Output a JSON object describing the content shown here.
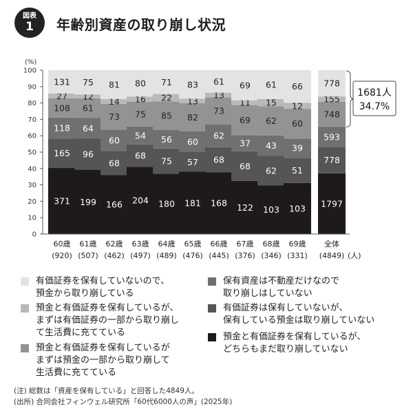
{
  "header": {
    "badge_top": "図表",
    "badge_num": "1",
    "title": "年齢別資産の取り崩し状況"
  },
  "chart_data": {
    "type": "bar",
    "stacked": true,
    "normalized": true,
    "ylabel": "(%)",
    "ylim": [
      0,
      100
    ],
    "yticks": [
      0,
      10,
      20,
      30,
      40,
      50,
      60,
      70,
      80,
      90,
      100
    ],
    "categories": [
      "60歳",
      "61歳",
      "62歳",
      "63歳",
      "64歳",
      "65歳",
      "66歳",
      "67歳",
      "68歳",
      "69歳",
      "全体"
    ],
    "category_counts": [
      "(920)",
      "(507)",
      "(462)",
      "(497)",
      "(489)",
      "(476)",
      "(445)",
      "(376)",
      "(346)",
      "(331)",
      "(4849)"
    ],
    "count_unit": "(人)",
    "series": [
      {
        "name": "預金と有価証券を保有しているが、どちらもまだ取り崩していない",
        "color": "#1e1a1a",
        "values": [
          371,
          199,
          166,
          204,
          180,
          181,
          168,
          122,
          103,
          103,
          1797
        ]
      },
      {
        "name": "有価証券は保有していないが、保有している預金は取り崩していない",
        "color": "#555555",
        "values": [
          165,
          96,
          68,
          68,
          75,
          57,
          68,
          68,
          62,
          51,
          778
        ]
      },
      {
        "name": "保有資産は不動産だけなので取り崩しはしていない",
        "color": "#707070",
        "values": [
          118,
          64,
          60,
          54,
          56,
          60,
          62,
          37,
          43,
          39,
          593
        ]
      },
      {
        "name": "預金と有価証券を保有しているがまずは預金の一部から取り崩して生活費に充てている",
        "color": "#939393",
        "values": [
          108,
          61,
          73,
          75,
          85,
          82,
          73,
          69,
          62,
          60,
          748
        ]
      },
      {
        "name": "預金と有価証券を保有しているが、まずは有価証券の一部から取り崩して生活費に充てている",
        "color": "#b9b9b9",
        "values": [
          27,
          12,
          14,
          16,
          22,
          13,
          13,
          11,
          15,
          12,
          155
        ]
      },
      {
        "name": "有価証券を保有していないので、預金から取り崩している",
        "color": "#e3e3e3",
        "values": [
          131,
          75,
          81,
          80,
          71,
          83,
          61,
          69,
          61,
          66,
          778
        ]
      }
    ],
    "annotation": {
      "line1": "1681人",
      "line2": "34.7%"
    },
    "grid": false,
    "legend_position": "bottom"
  },
  "legend": {
    "left": [
      {
        "lines": [
          "有価証券を保有していないので、",
          "預金から取り崩している"
        ],
        "color": "#e3e3e3"
      },
      {
        "lines": [
          "預金と有価証券を保有しているが、",
          "まずは有価証券の一部から取り崩し",
          "て生活費に充てている"
        ],
        "color": "#b9b9b9"
      },
      {
        "lines": [
          "預金と有価証券を保有しているが",
          "まずは預金の一部から取り崩して",
          "生活費に充てている"
        ],
        "color": "#939393"
      }
    ],
    "right": [
      {
        "lines": [
          "保有資産は不動産だけなので",
          "取り崩しはしていない"
        ],
        "color": "#707070"
      },
      {
        "lines": [
          "有価証券は保有していないが、",
          "保有している預金は取り崩していない"
        ],
        "color": "#555555"
      },
      {
        "lines": [
          "預金と有価証券を保有しているが、",
          "どちらもまだ取り崩していない"
        ],
        "color": "#1e1a1a"
      }
    ]
  },
  "notes": {
    "note1": "(注) 総数は「資産を保有している」と回答した4849人。",
    "note2": "(出所) 合同会社フィンウェル研究所「60代6000人の声」(2025年)"
  }
}
